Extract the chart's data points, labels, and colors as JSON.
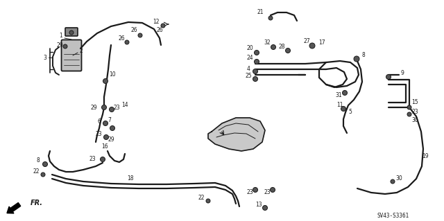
{
  "bg_color": "#ffffff",
  "line_color": "#1a1a1a",
  "diagram_code": "SV43-S3361",
  "fr_label": "FR.",
  "fig_width": 6.4,
  "fig_height": 3.19,
  "dpi": 100,
  "gray_light": "#c0c0c0",
  "gray_mid": "#888888",
  "gray_dark": "#555555"
}
